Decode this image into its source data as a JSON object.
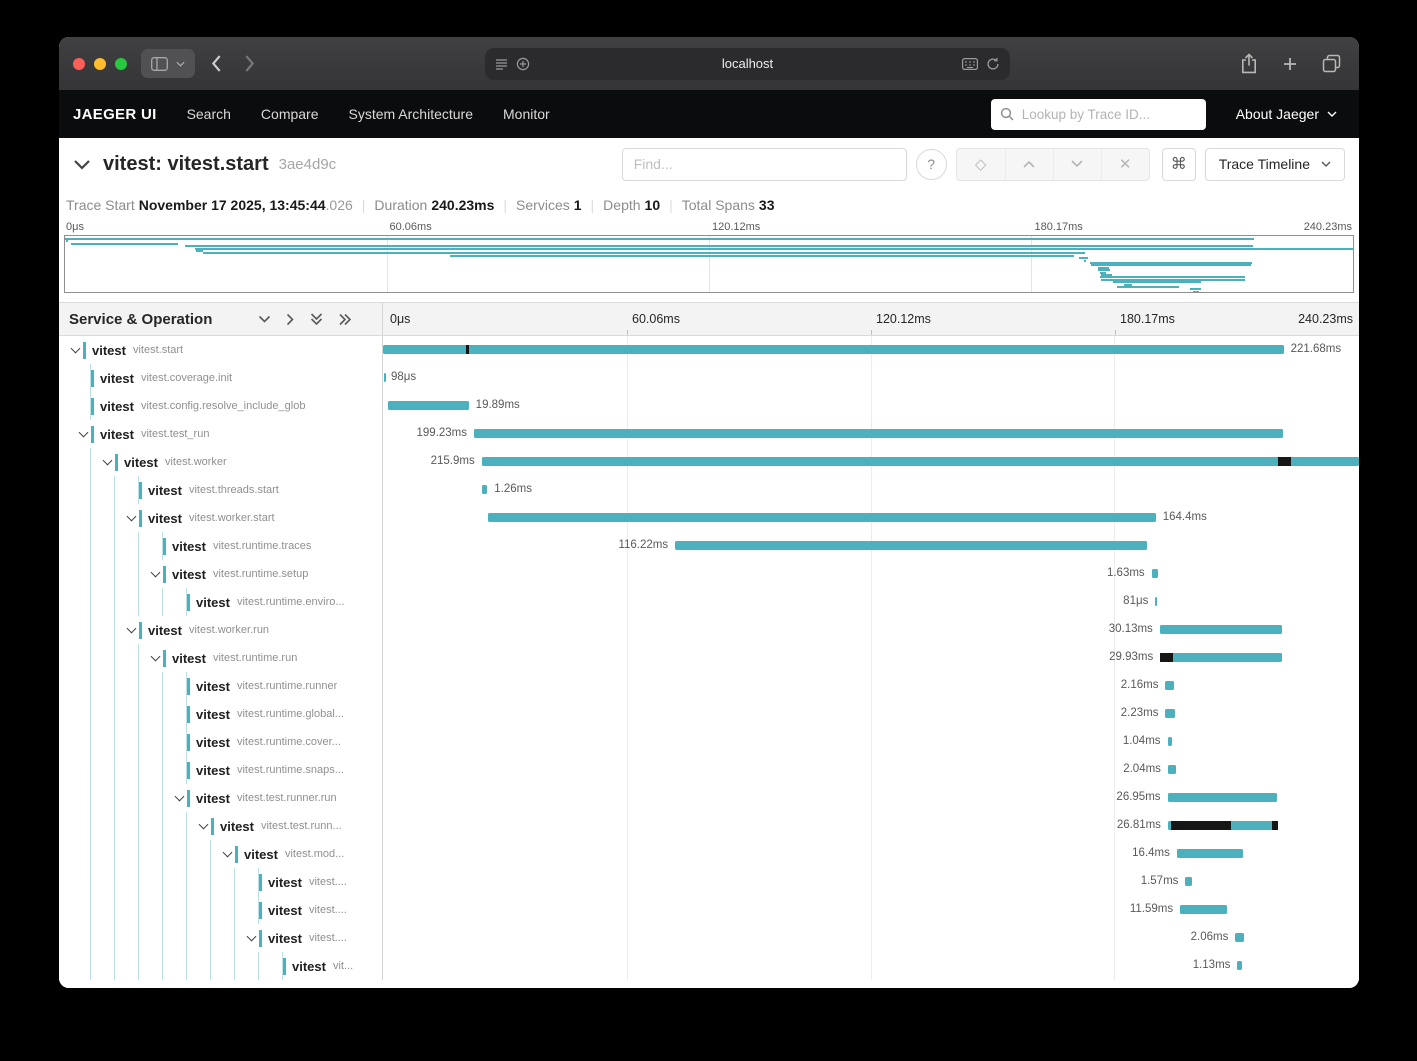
{
  "browser": {
    "url": "localhost"
  },
  "navbar": {
    "brand": "JAEGER UI",
    "items": [
      "Search",
      "Compare",
      "System Architecture",
      "Monitor"
    ],
    "search_placeholder": "Lookup by Trace ID...",
    "about_label": "About Jaeger"
  },
  "trace_header": {
    "title": "vitest: vitest.start",
    "trace_id": "3ae4d9c",
    "find_placeholder": "Find...",
    "view_label": "Trace Timeline",
    "shortcut_label": "⌘",
    "help_label": "?",
    "focus_icon": "◇",
    "clear_icon": "✕"
  },
  "summary": {
    "items": [
      {
        "label": "Trace Start",
        "value": "November 17 2025, 13:45:44",
        "suffix": ".026"
      },
      {
        "label": "Duration",
        "value": "240.23ms"
      },
      {
        "label": "Services",
        "value": "1"
      },
      {
        "label": "Depth",
        "value": "10"
      },
      {
        "label": "Total Spans",
        "value": "33"
      }
    ]
  },
  "timeline": {
    "header_left": "Service & Operation",
    "ticks": [
      "0μs",
      "60.06ms",
      "120.12ms",
      "180.17ms",
      "240.23ms"
    ],
    "total_ms": 240.23,
    "bar_color": "#4db1bd",
    "spans": [
      {
        "service": "vitest",
        "op": "vitest.start",
        "depth": 0,
        "parent": true,
        "start": 0,
        "dur": 221.68,
        "label": "221.68ms",
        "side": "right",
        "overlays": [
          [
            20.5,
            0.7
          ]
        ]
      },
      {
        "service": "vitest",
        "op": "vitest.coverage.init",
        "depth": 1,
        "parent": false,
        "start": 0.15,
        "dur": 0.098,
        "label": "98μs",
        "side": "right"
      },
      {
        "service": "vitest",
        "op": "vitest.config.resolve_include_glob",
        "depth": 1,
        "parent": false,
        "start": 1.2,
        "dur": 19.89,
        "label": "19.89ms",
        "side": "right"
      },
      {
        "service": "vitest",
        "op": "vitest.test_run",
        "depth": 1,
        "parent": true,
        "start": 22.4,
        "dur": 199.23,
        "label": "199.23ms",
        "side": "left"
      },
      {
        "service": "vitest",
        "op": "vitest.worker",
        "depth": 2,
        "parent": true,
        "start": 24.3,
        "dur": 215.9,
        "label": "215.9ms",
        "side": "left",
        "overlays": [
          [
            220.3,
            3.2
          ]
        ]
      },
      {
        "service": "vitest",
        "op": "vitest.threads.start",
        "depth": 3,
        "parent": false,
        "start": 24.4,
        "dur": 1.26,
        "label": "1.26ms",
        "side": "right"
      },
      {
        "service": "vitest",
        "op": "vitest.worker.start",
        "depth": 3,
        "parent": true,
        "start": 25.8,
        "dur": 164.4,
        "label": "164.4ms",
        "side": "right"
      },
      {
        "service": "vitest",
        "op": "vitest.runtime.traces",
        "depth": 4,
        "parent": false,
        "start": 71.9,
        "dur": 116.22,
        "label": "116.22ms",
        "side": "left"
      },
      {
        "service": "vitest",
        "op": "vitest.runtime.setup",
        "depth": 4,
        "parent": true,
        "start": 189.2,
        "dur": 1.63,
        "label": "1.63ms",
        "side": "left"
      },
      {
        "service": "vitest",
        "op": "vitest.runtime.enviro...",
        "depth": 5,
        "parent": false,
        "start": 190.1,
        "dur": 0.081,
        "label": "81μs",
        "side": "left"
      },
      {
        "service": "vitest",
        "op": "vitest.worker.run",
        "depth": 3,
        "parent": true,
        "start": 191.2,
        "dur": 30.13,
        "label": "30.13ms",
        "side": "left"
      },
      {
        "service": "vitest",
        "op": "vitest.runtime.run",
        "depth": 4,
        "parent": true,
        "start": 191.3,
        "dur": 29.93,
        "label": "29.93ms",
        "side": "left",
        "overlays": [
          [
            191.3,
            3.2
          ]
        ]
      },
      {
        "service": "vitest",
        "op": "vitest.runtime.runner",
        "depth": 5,
        "parent": false,
        "start": 192.6,
        "dur": 2.16,
        "label": "2.16ms",
        "side": "left"
      },
      {
        "service": "vitest",
        "op": "vitest.runtime.global...",
        "depth": 5,
        "parent": false,
        "start": 192.6,
        "dur": 2.23,
        "label": "2.23ms",
        "side": "left"
      },
      {
        "service": "vitest",
        "op": "vitest.runtime.cover...",
        "depth": 5,
        "parent": false,
        "start": 193.1,
        "dur": 1.04,
        "label": "1.04ms",
        "side": "left"
      },
      {
        "service": "vitest",
        "op": "vitest.runtime.snaps...",
        "depth": 5,
        "parent": false,
        "start": 193.2,
        "dur": 2.04,
        "label": "2.04ms",
        "side": "left"
      },
      {
        "service": "vitest",
        "op": "vitest.test.runner.run",
        "depth": 5,
        "parent": true,
        "start": 193.1,
        "dur": 26.95,
        "label": "26.95ms",
        "side": "left"
      },
      {
        "service": "vitest",
        "op": "vitest.test.runn...",
        "depth": 6,
        "parent": true,
        "start": 193.2,
        "dur": 26.81,
        "label": "26.81ms",
        "side": "left",
        "overlays": [
          [
            194.0,
            14.8
          ],
          [
            218.7,
            1.6
          ]
        ]
      },
      {
        "service": "vitest",
        "op": "vitest.mod...",
        "depth": 7,
        "parent": true,
        "start": 195.4,
        "dur": 16.4,
        "label": "16.4ms",
        "side": "left"
      },
      {
        "service": "vitest",
        "op": "vitest....",
        "depth": 8,
        "parent": false,
        "start": 197.5,
        "dur": 1.57,
        "label": "1.57ms",
        "side": "left"
      },
      {
        "service": "vitest",
        "op": "vitest....",
        "depth": 8,
        "parent": false,
        "start": 196.2,
        "dur": 11.59,
        "label": "11.59ms",
        "side": "left"
      },
      {
        "service": "vitest",
        "op": "vitest....",
        "depth": 8,
        "parent": true,
        "start": 209.8,
        "dur": 2.06,
        "label": "2.06ms",
        "side": "left"
      },
      {
        "service": "vitest",
        "op": "vit...",
        "depth": 9,
        "parent": false,
        "start": 210.3,
        "dur": 1.13,
        "label": "1.13ms",
        "side": "left"
      }
    ]
  }
}
